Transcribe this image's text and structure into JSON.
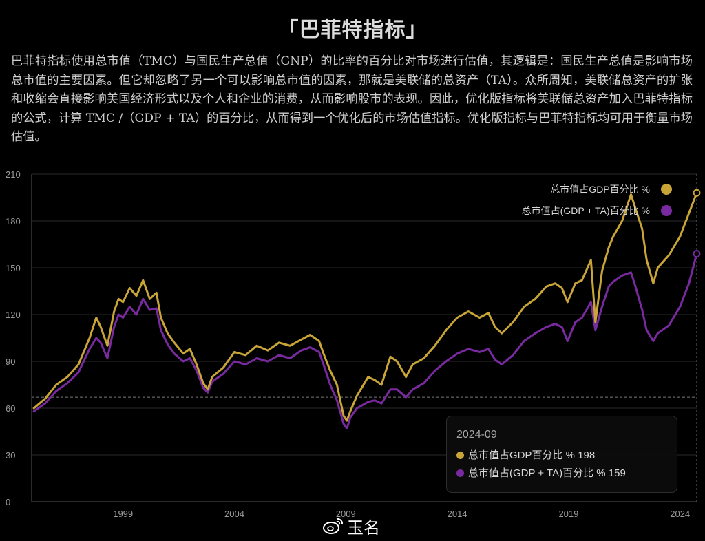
{
  "page": {
    "title": "「巴菲特指标」",
    "description": "巴菲特指标使用总市值（TMC）与国民生产总值（GNP）的比率的百分比对市场进行估值，其逻辑是：国民生产总值是影响市场总市值的主要因素。但它却忽略了另一个可以影响总市值的因素，那就是美联储的总资产（TA）。众所周知，美联储总资产的扩张和收缩会直接影响美国经济形式以及个人和企业的消费，从而影响股市的表现。因此，优化版指标将美联储总资产加入巴菲特指标的公式，计算 TMC /（GDP + TA）的百分比，从而得到一个优化后的市场估值指标。优化版指标与巴菲特指标均可用于衡量市场估值。",
    "watermark": "玉名"
  },
  "colors": {
    "gold": "#c9a537",
    "purple": "#7a2aa0",
    "grid": "#2a2a2a",
    "axis": "#555555"
  },
  "tooltip": {
    "date": "2024-09",
    "rows": [
      {
        "label": "总市值占GDP百分比 %",
        "value": "198"
      },
      {
        "label": "总市值占(GDP + TA)百分比 %",
        "value": "159"
      }
    ]
  },
  "chart_data": {
    "type": "line",
    "xlim": [
      1994.9,
      2024.75
    ],
    "ylim": [
      0,
      210
    ],
    "y_ticks": [
      0,
      30,
      60,
      90,
      120,
      150,
      180,
      210
    ],
    "x_ticks": [
      {
        "value": 1999,
        "label": "1999"
      },
      {
        "value": 2004,
        "label": "2004"
      },
      {
        "value": 2009,
        "label": "2009"
      },
      {
        "value": 2014,
        "label": "2014"
      },
      {
        "value": 2019,
        "label": "2019"
      },
      {
        "value": 2024,
        "label": "2024"
      }
    ],
    "reference_line": 67,
    "legend_position": "top-right",
    "series": [
      {
        "name": "总市值占GDP百分比 %",
        "color": "#c9a537",
        "x": [
          1995.0,
          1995.5,
          1996.0,
          1996.5,
          1997.0,
          1997.5,
          1997.8,
          1998.0,
          1998.3,
          1998.6,
          1998.8,
          1999.0,
          1999.3,
          1999.6,
          1999.9,
          2000.2,
          2000.5,
          2000.7,
          2001.0,
          2001.3,
          2001.7,
          2002.0,
          2002.3,
          2002.6,
          2002.8,
          2003.0,
          2003.5,
          2004.0,
          2004.5,
          2005.0,
          2005.5,
          2006.0,
          2006.5,
          2007.0,
          2007.4,
          2007.8,
          2008.0,
          2008.3,
          2008.6,
          2008.9,
          2009.05,
          2009.2,
          2009.5,
          2010.0,
          2010.3,
          2010.6,
          2011.0,
          2011.3,
          2011.7,
          2012.0,
          2012.5,
          2013.0,
          2013.5,
          2014.0,
          2014.5,
          2015.0,
          2015.4,
          2015.7,
          2016.0,
          2016.5,
          2017.0,
          2017.5,
          2018.0,
          2018.4,
          2018.7,
          2018.95,
          2019.3,
          2019.6,
          2020.0,
          2020.2,
          2020.5,
          2020.8,
          2021.0,
          2021.4,
          2021.8,
          2022.0,
          2022.3,
          2022.5,
          2022.8,
          2023.0,
          2023.5,
          2024.0,
          2024.4,
          2024.75
        ],
        "y": [
          60,
          66,
          75,
          80,
          88,
          105,
          118,
          112,
          100,
          122,
          130,
          128,
          137,
          132,
          142,
          130,
          134,
          118,
          108,
          102,
          95,
          98,
          88,
          76,
          72,
          80,
          86,
          96,
          94,
          100,
          97,
          102,
          100,
          104,
          107,
          103,
          95,
          84,
          75,
          55,
          52,
          58,
          68,
          80,
          78,
          75,
          93,
          90,
          80,
          88,
          92,
          100,
          110,
          118,
          122,
          118,
          121,
          112,
          108,
          115,
          125,
          130,
          138,
          140,
          137,
          128,
          140,
          142,
          155,
          115,
          148,
          163,
          170,
          180,
          197,
          188,
          175,
          155,
          140,
          150,
          158,
          170,
          185,
          198
        ]
      },
      {
        "name": "总市值占(GDP + TA)百分比 %",
        "color": "#7a2aa0",
        "x": [
          1995.0,
          1995.5,
          1996.0,
          1996.5,
          1997.0,
          1997.5,
          1997.8,
          1998.0,
          1998.3,
          1998.6,
          1998.8,
          1999.0,
          1999.3,
          1999.6,
          1999.9,
          2000.2,
          2000.5,
          2000.7,
          2001.0,
          2001.3,
          2001.7,
          2002.0,
          2002.3,
          2002.6,
          2002.8,
          2003.0,
          2003.5,
          2004.0,
          2004.5,
          2005.0,
          2005.5,
          2006.0,
          2006.5,
          2007.0,
          2007.4,
          2007.8,
          2008.0,
          2008.3,
          2008.6,
          2008.9,
          2009.05,
          2009.2,
          2009.5,
          2010.0,
          2010.3,
          2010.6,
          2011.0,
          2011.3,
          2011.7,
          2012.0,
          2012.5,
          2013.0,
          2013.5,
          2014.0,
          2014.5,
          2015.0,
          2015.4,
          2015.7,
          2016.0,
          2016.5,
          2017.0,
          2017.5,
          2018.0,
          2018.4,
          2018.7,
          2018.95,
          2019.3,
          2019.6,
          2020.0,
          2020.2,
          2020.5,
          2020.8,
          2021.0,
          2021.4,
          2021.8,
          2022.0,
          2022.3,
          2022.5,
          2022.8,
          2023.0,
          2023.5,
          2024.0,
          2024.4,
          2024.75
        ],
        "y": [
          58,
          63,
          71,
          76,
          83,
          98,
          105,
          102,
          92,
          112,
          120,
          118,
          125,
          120,
          130,
          123,
          124,
          110,
          101,
          95,
          90,
          92,
          84,
          73,
          70,
          77,
          82,
          90,
          88,
          92,
          90,
          94,
          92,
          97,
          99,
          96,
          88,
          75,
          65,
          50,
          47,
          54,
          60,
          64,
          65,
          63,
          72,
          72,
          67,
          72,
          76,
          84,
          90,
          95,
          98,
          96,
          98,
          91,
          88,
          94,
          103,
          108,
          112,
          114,
          112,
          103,
          115,
          118,
          128,
          110,
          125,
          138,
          141,
          145,
          147,
          138,
          123,
          110,
          103,
          108,
          113,
          125,
          140,
          159
        ]
      }
    ]
  }
}
